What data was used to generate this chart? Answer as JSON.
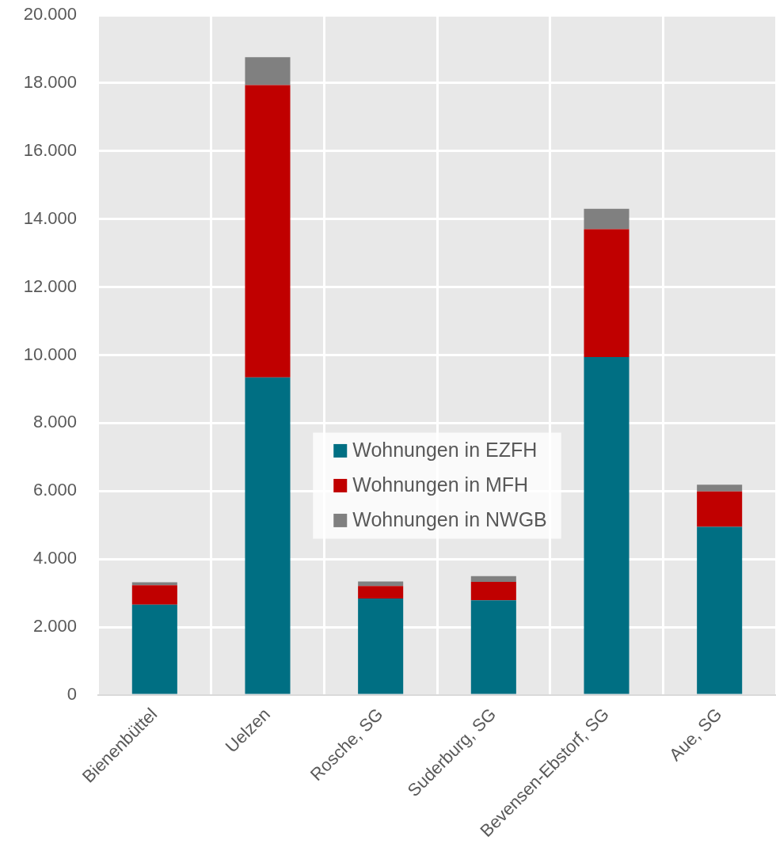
{
  "chart_data": {
    "type": "bar",
    "stacked": true,
    "categories": [
      "Bienenbüttel",
      "Uelzen",
      "Rosche, SG",
      "Suderburg, SG",
      "Bevensen-Ebstorf, SG",
      "Aue, SG"
    ],
    "series": [
      {
        "name": "Wohnungen in EZFH",
        "color": "#006f83",
        "values": [
          2660,
          9340,
          2840,
          2790,
          9940,
          4950
        ]
      },
      {
        "name": "Wohnungen in MFH",
        "color": "#c00000",
        "values": [
          570,
          8600,
          370,
          540,
          3760,
          1040
        ]
      },
      {
        "name": "Wohnungen in NWGB",
        "color": "#808080",
        "values": [
          90,
          820,
          130,
          170,
          600,
          200
        ]
      }
    ],
    "ylim": [
      0,
      20000
    ],
    "yticks": [
      0,
      {
        "value": 2000,
        "label": "2.000"
      },
      {
        "value": 4000,
        "label": "4.000"
      },
      {
        "value": 6000,
        "label": "6.000"
      },
      {
        "value": 8000,
        "label": "8.000"
      },
      {
        "value": 10000,
        "label": "10.000"
      },
      {
        "value": 12000,
        "label": "12.000"
      },
      {
        "value": 14000,
        "label": "14.000"
      },
      {
        "value": 16000,
        "label": "16.000"
      },
      {
        "value": 18000,
        "label": "18.000"
      },
      {
        "value": 20000,
        "label": "20.000"
      }
    ],
    "grid": true,
    "legend": "center"
  }
}
